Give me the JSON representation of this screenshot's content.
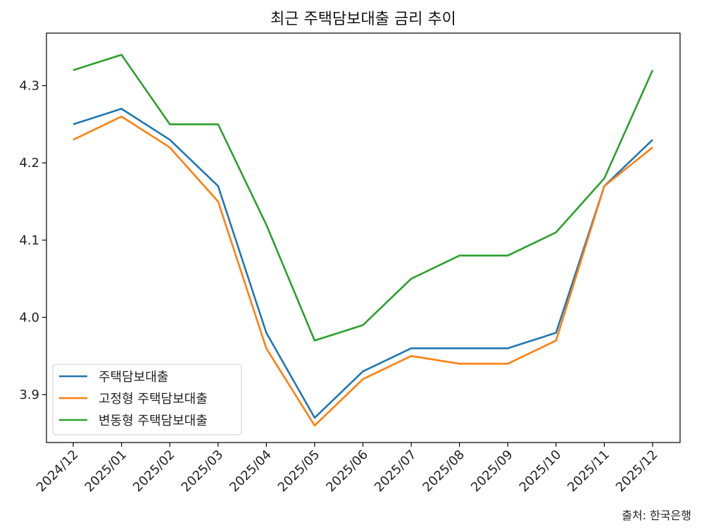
{
  "chart_data": {
    "type": "line",
    "title": "최근 주택담보대출 금리 추이",
    "xlabel": "",
    "ylabel": "",
    "categories": [
      "2024/12",
      "2025/01",
      "2025/02",
      "2025/03",
      "2025/04",
      "2025/05",
      "2025/06",
      "2025/07",
      "2025/08",
      "2025/09",
      "2025/10",
      "2025/11",
      "2025/12"
    ],
    "series": [
      {
        "name": "주택담보대출",
        "color": "#1f77b4",
        "values": [
          4.25,
          4.27,
          4.23,
          4.17,
          3.98,
          3.87,
          3.93,
          3.96,
          3.96,
          3.96,
          3.98,
          4.17,
          4.23
        ]
      },
      {
        "name": "고정형 주택담보대출",
        "color": "#ff7f0e",
        "values": [
          4.23,
          4.26,
          4.22,
          4.15,
          3.96,
          3.86,
          3.92,
          3.95,
          3.94,
          3.94,
          3.97,
          4.17,
          4.22
        ]
      },
      {
        "name": "변동형 주택담보대출",
        "color": "#2ca02c",
        "values": [
          4.32,
          4.34,
          4.25,
          4.25,
          4.12,
          3.97,
          3.99,
          4.05,
          4.08,
          4.08,
          4.11,
          4.18,
          4.32
        ]
      }
    ],
    "ylim": [
      3.838,
      4.368
    ],
    "yticks": [
      "3.9",
      "4.0",
      "4.1",
      "4.2",
      "4.3"
    ],
    "grid": false,
    "legend_position": "lower-left",
    "source_note": "출처: 한국은행"
  }
}
